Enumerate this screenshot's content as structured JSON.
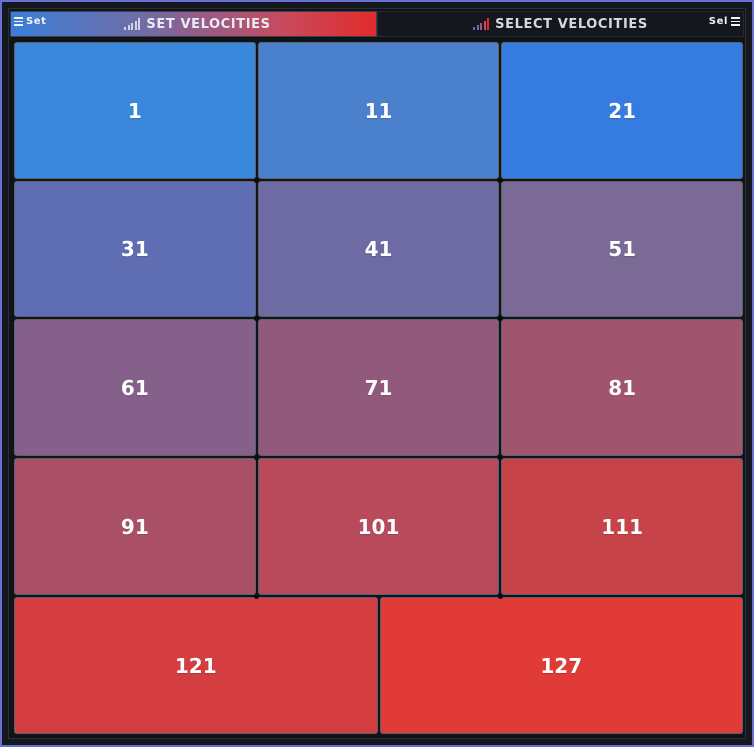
{
  "tabs": {
    "set": {
      "label": "SET VELOCITIES",
      "corner_label": "Set",
      "active": true
    },
    "select": {
      "label": "SELECT VELOCITIES",
      "corner_label": "Sel",
      "active": false
    }
  },
  "icons": {
    "menu": "hamburger-icon",
    "level": "signal-bars-icon"
  },
  "colors": {
    "frame_border": "#6a6fd6",
    "background": "#101318",
    "low": "#3a88dc",
    "high": "#e03b37"
  },
  "grid": {
    "rows": [
      [
        {
          "label": "1",
          "color": "#3a88dc"
        },
        {
          "label": "11",
          "color": "#4a80cc"
        },
        {
          "label": "21",
          "color": "#367be0"
        }
      ],
      [
        {
          "label": "31",
          "color": "#5f6eb3"
        },
        {
          "label": "41",
          "color": "#6d6aa4"
        },
        {
          "label": "51",
          "color": "#7b6a96"
        }
      ],
      [
        {
          "label": "61",
          "color": "#84608a"
        },
        {
          "label": "71",
          "color": "#915a7c"
        },
        {
          "label": "81",
          "color": "#a1546e"
        }
      ],
      [
        {
          "label": "91",
          "color": "#aa5066"
        },
        {
          "label": "101",
          "color": "#b84a5b"
        },
        {
          "label": "111",
          "color": "#c64449"
        }
      ],
      [
        {
          "label": "121",
          "color": "#d43e40"
        },
        {
          "label": "127",
          "color": "#e03b37"
        }
      ]
    ]
  }
}
